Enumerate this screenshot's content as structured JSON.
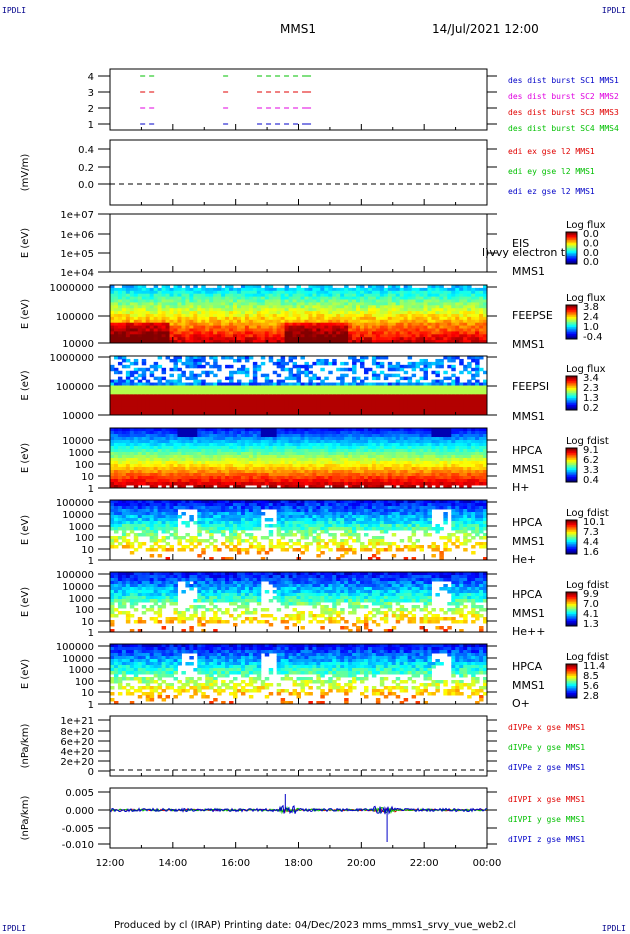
{
  "header": {
    "left_tag": "IPDLI",
    "right_tag": "IPDLI",
    "mission": "MMS1",
    "datetime": "14/Jul/2021 12:00"
  },
  "footer": {
    "left_tag": "IPDLI",
    "right_tag": "IPDLI",
    "text": "Produced by cl (IRAP)   Printing date: 04/Dec/2023   mms_mms1_srvy_vue_web2.cl"
  },
  "colors": {
    "red": "#e00000",
    "green": "#00c000",
    "blue": "#0000c8",
    "magenta": "#e000e0"
  },
  "chart_data": [
    {
      "panel": "burst",
      "type": "scatter",
      "ylim": [
        0.5,
        4.5
      ],
      "ytick_labels": [
        "4",
        "3",
        "2",
        "1"
      ],
      "legend": [
        {
          "text": "des dist burst SC1 MMS1",
          "color": "#0000c8"
        },
        {
          "text": "des dist burst SC2 MMS2",
          "color": "#e000e0"
        },
        {
          "text": "des dist burst SC3 MMS3",
          "color": "#e00000"
        },
        {
          "text": "des dist burst SC4 MMS4",
          "color": "#00c000"
        }
      ]
    },
    {
      "panel": "edi",
      "type": "line",
      "ylabel": "(mV/m)",
      "ylim": [
        -0.1,
        0.5
      ],
      "ytick_labels": [
        "0.4",
        "0.2",
        "0.0"
      ],
      "legend": [
        {
          "text": "edi ex gse l2 MMS1",
          "color": "#e00000"
        },
        {
          "text": "edi ey gse l2 MMS1",
          "color": "#00c000"
        },
        {
          "text": "edi ez gse l2 MMS1",
          "color": "#0000c8"
        }
      ]
    },
    {
      "panel": "eis",
      "type": "heatmap",
      "ylabel": "E (eV)",
      "scale": "log",
      "ylim": [
        10000,
        10000000
      ],
      "ytick_labels": [
        "1e+07",
        "1e+06",
        "1e+05",
        "1e+04"
      ],
      "side_labels": [
        "EIS",
        "MMS1"
      ],
      "overlay_text": "l)vvy electron to",
      "colorbar": {
        "title": "Log flux",
        "labels": [
          "0.0",
          "0.0",
          "0.0",
          "0.0"
        ]
      }
    },
    {
      "panel": "feepse",
      "type": "heatmap",
      "ylabel": "E (eV)",
      "scale": "log",
      "ytick_labels": [
        "1000000",
        "100000",
        "10000"
      ],
      "side_labels": [
        "FEEPSE",
        "MMS1"
      ],
      "colorbar": {
        "title": "Log flux",
        "labels": [
          "3.8",
          "2.4",
          "1.0",
          "-0.4"
        ]
      }
    },
    {
      "panel": "feepsi",
      "type": "heatmap",
      "ylabel": "E (eV)",
      "scale": "log",
      "ytick_labels": [
        "1000000",
        "100000",
        "10000"
      ],
      "side_labels": [
        "FEEPSI",
        "MMS1"
      ],
      "colorbar": {
        "title": "Log flux",
        "labels": [
          "3.4",
          "2.3",
          "1.3",
          "0.2"
        ]
      }
    },
    {
      "panel": "hpca_h",
      "type": "heatmap",
      "ylabel": "E (eV)",
      "scale": "log",
      "ytick_labels": [
        "10000",
        "1000",
        "100",
        "10",
        "1"
      ],
      "side_labels": [
        "HPCA",
        "MMS1",
        "H+"
      ],
      "colorbar": {
        "title": "Log fdist",
        "labels": [
          "9.1",
          "6.2",
          "3.3",
          "0.4"
        ]
      }
    },
    {
      "panel": "hpca_he",
      "type": "heatmap",
      "ylabel": "E (eV)",
      "scale": "log",
      "ytick_labels": [
        "100000",
        "10000",
        "1000",
        "100",
        "10",
        "1"
      ],
      "side_labels": [
        "HPCA",
        "MMS1",
        "He+"
      ],
      "colorbar": {
        "title": "Log fdist",
        "labels": [
          "10.1",
          "7.3",
          "4.4",
          "1.6"
        ]
      }
    },
    {
      "panel": "hpca_hepp",
      "type": "heatmap",
      "ylabel": "E (eV)",
      "scale": "log",
      "ytick_labels": [
        "100000",
        "10000",
        "1000",
        "100",
        "10",
        "1"
      ],
      "side_labels": [
        "HPCA",
        "MMS1",
        "He++"
      ],
      "colorbar": {
        "title": "Log fdist",
        "labels": [
          "9.9",
          "7.0",
          "4.1",
          "1.3"
        ]
      }
    },
    {
      "panel": "hpca_o",
      "type": "heatmap",
      "ylabel": "E (eV)",
      "scale": "log",
      "ytick_labels": [
        "100000",
        "10000",
        "1000",
        "100",
        "10",
        "1"
      ],
      "side_labels": [
        "HPCA",
        "MMS1",
        "O+"
      ],
      "colorbar": {
        "title": "Log fdist",
        "labels": [
          "11.4",
          "8.5",
          "5.6",
          "2.8"
        ]
      }
    },
    {
      "panel": "divpe",
      "type": "line",
      "ylabel": "(nPa/km)",
      "ytick_labels": [
        "1e+21",
        "8e+20",
        "6e+20",
        "4e+20",
        "2e+20",
        "0"
      ],
      "legend": [
        {
          "text": "dIVPe x gse MMS1",
          "color": "#e00000"
        },
        {
          "text": "dIVPe y gse MMS1",
          "color": "#00c000"
        },
        {
          "text": "dIVPe z gse MMS1",
          "color": "#0000c8"
        }
      ]
    },
    {
      "panel": "divpi",
      "type": "line",
      "ylabel": "(nPa/km)",
      "ylim": [
        -0.012,
        0.008
      ],
      "ytick_labels": [
        "0.005",
        "0.000",
        "-0.005",
        "-0.010"
      ],
      "legend": [
        {
          "text": "dIVPI x gse MMS1",
          "color": "#e00000"
        },
        {
          "text": "dIVPI y gse MMS1",
          "color": "#00c000"
        },
        {
          "text": "dIVPI z gse MMS1",
          "color": "#0000c8"
        }
      ]
    }
  ],
  "xaxis": {
    "tick_labels": [
      "12:00",
      "14:00",
      "16:00",
      "18:00",
      "20:00",
      "22:00",
      "00:00"
    ]
  }
}
